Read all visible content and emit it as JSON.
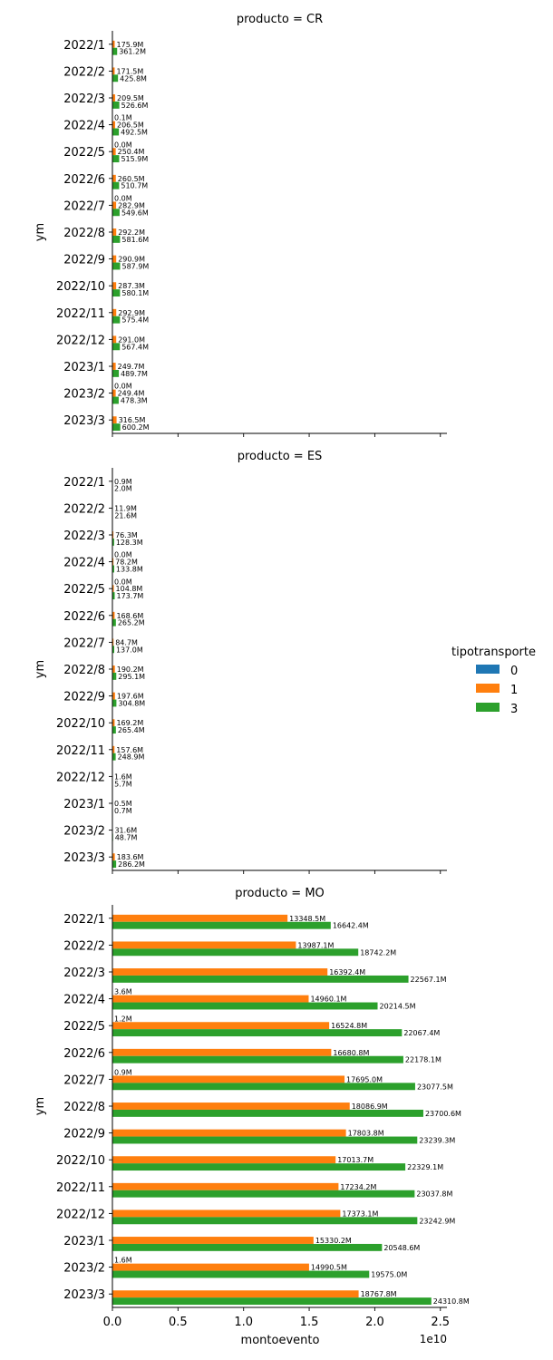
{
  "figure": {
    "x_axis_label": "montoevento",
    "y_axis_label": "ym",
    "offset_label": "1e10",
    "x_ticks": [
      "0.0",
      "0.5",
      "1.0",
      "1.5",
      "2.0",
      "2.5"
    ],
    "x_tick_values": [
      0,
      5000000000.0,
      10000000000.0,
      15000000000.0,
      20000000000.0,
      25000000000.0
    ],
    "x_max": 25500000000.0,
    "legend": {
      "title": "tipotransporte",
      "placement": "right",
      "items": [
        {
          "label": "0",
          "color": "#1f77b4"
        },
        {
          "label": "1",
          "color": "#ff7f0e"
        },
        {
          "label": "3",
          "color": "#2ca02c"
        }
      ]
    }
  },
  "chart_data": [
    {
      "type": "bar",
      "title": "producto = CR",
      "categories": [
        "2022/1",
        "2022/2",
        "2022/3",
        "2022/4",
        "2022/5",
        "2022/6",
        "2022/7",
        "2022/8",
        "2022/9",
        "2022/10",
        "2022/11",
        "2022/12",
        "2023/1",
        "2023/2",
        "2023/3"
      ],
      "series": [
        {
          "name": "0",
          "color": "#1f77b4",
          "values": [
            null,
            null,
            null,
            100000.0,
            0,
            null,
            0,
            null,
            null,
            null,
            null,
            null,
            null,
            0,
            null
          ],
          "labels": [
            null,
            null,
            null,
            "0.1M",
            "0.0M",
            null,
            "0.0M",
            null,
            null,
            null,
            null,
            null,
            null,
            "0.0M",
            null
          ]
        },
        {
          "name": "1",
          "color": "#ff7f0e",
          "values": [
            175900000.0,
            171500000.0,
            209500000.0,
            206500000.0,
            250400000.0,
            260500000.0,
            282900000.0,
            292200000.0,
            290900000.0,
            287300000.0,
            292900000.0,
            291000000.0,
            249700000.0,
            249400000.0,
            316500000.0
          ],
          "labels": [
            "175.9M",
            "171.5M",
            "209.5M",
            "206.5M",
            "250.4M",
            "260.5M",
            "282.9M",
            "292.2M",
            "290.9M",
            "287.3M",
            "292.9M",
            "291.0M",
            "249.7M",
            "249.4M",
            "316.5M"
          ]
        },
        {
          "name": "3",
          "color": "#2ca02c",
          "values": [
            361200000.0,
            425800000.0,
            526600000.0,
            492500000.0,
            515900000.0,
            510700000.0,
            549600000.0,
            581600000.0,
            587900000.0,
            580100000.0,
            575400000.0,
            567400000.0,
            489700000.0,
            478300000.0,
            600200000.0
          ],
          "labels": [
            "361.2M",
            "425.8M",
            "526.6M",
            "492.5M",
            "515.9M",
            "510.7M",
            "549.6M",
            "581.6M",
            "587.9M",
            "580.1M",
            "575.4M",
            "567.4M",
            "489.7M",
            "478.3M",
            "600.2M"
          ]
        }
      ]
    },
    {
      "type": "bar",
      "title": "producto = ES",
      "categories": [
        "2022/1",
        "2022/2",
        "2022/3",
        "2022/4",
        "2022/5",
        "2022/6",
        "2022/7",
        "2022/8",
        "2022/9",
        "2022/10",
        "2022/11",
        "2022/12",
        "2023/1",
        "2023/2",
        "2023/3"
      ],
      "series": [
        {
          "name": "0",
          "color": "#1f77b4",
          "values": [
            null,
            null,
            null,
            0,
            0,
            null,
            null,
            null,
            null,
            null,
            null,
            null,
            null,
            null,
            null
          ],
          "labels": [
            null,
            null,
            null,
            "0.0M",
            "0.0M",
            null,
            null,
            null,
            null,
            null,
            null,
            null,
            null,
            null,
            null
          ]
        },
        {
          "name": "1",
          "color": "#ff7f0e",
          "values": [
            900000.0,
            11900000.0,
            76300000.0,
            78200000.0,
            104800000.0,
            168600000.0,
            84700000.0,
            190200000.0,
            197600000.0,
            169200000.0,
            157600000.0,
            1600000.0,
            500000.0,
            31600000.0,
            183600000.0
          ],
          "labels": [
            "0.9M",
            "11.9M",
            "76.3M",
            "78.2M",
            "104.8M",
            "168.6M",
            "84.7M",
            "190.2M",
            "197.6M",
            "169.2M",
            "157.6M",
            "1.6M",
            "0.5M",
            "31.6M",
            "183.6M"
          ]
        },
        {
          "name": "3",
          "color": "#2ca02c",
          "values": [
            2000000.0,
            21600000.0,
            128300000.0,
            133800000.0,
            173700000.0,
            265200000.0,
            137000000.0,
            295100000.0,
            304800000.0,
            265400000.0,
            248900000.0,
            5700000.0,
            700000.0,
            48700000.0,
            286200000.0
          ],
          "labels": [
            "2.0M",
            "21.6M",
            "128.3M",
            "133.8M",
            "173.7M",
            "265.2M",
            "137.0M",
            "295.1M",
            "304.8M",
            "265.4M",
            "248.9M",
            "5.7M",
            "0.7M",
            "48.7M",
            "286.2M"
          ]
        }
      ]
    },
    {
      "type": "bar",
      "title": "producto = MO",
      "categories": [
        "2022/1",
        "2022/2",
        "2022/3",
        "2022/4",
        "2022/5",
        "2022/6",
        "2022/7",
        "2022/8",
        "2022/9",
        "2022/10",
        "2022/11",
        "2022/12",
        "2023/1",
        "2023/2",
        "2023/3"
      ],
      "series": [
        {
          "name": "0",
          "color": "#1f77b4",
          "values": [
            null,
            null,
            null,
            3600000.0,
            1200000.0,
            null,
            900000.0,
            null,
            null,
            null,
            null,
            null,
            null,
            1600000.0,
            null
          ],
          "labels": [
            null,
            null,
            null,
            "3.6M",
            "1.2M",
            null,
            "0.9M",
            null,
            null,
            null,
            null,
            null,
            null,
            "1.6M",
            null
          ]
        },
        {
          "name": "1",
          "color": "#ff7f0e",
          "values": [
            13348500000.0,
            13987100000.0,
            16392400000.0,
            14960100000.0,
            16524800000.0,
            16680800000.0,
            17695000000.0,
            18086900000.0,
            17803800000.0,
            17013700000.0,
            17234200000.0,
            17373100000.0,
            15330200000.0,
            14990500000.0,
            18767800000.0
          ],
          "labels": [
            "13348.5M",
            "13987.1M",
            "16392.4M",
            "14960.1M",
            "16524.8M",
            "16680.8M",
            "17695.0M",
            "18086.9M",
            "17803.8M",
            "17013.7M",
            "17234.2M",
            "17373.1M",
            "15330.2M",
            "14990.5M",
            "18767.8M"
          ]
        },
        {
          "name": "3",
          "color": "#2ca02c",
          "values": [
            16642400000.0,
            18742200000.0,
            22567100000.0,
            20214500000.0,
            22067400000.0,
            22178100000.0,
            23077500000.0,
            23700600000.0,
            23239300000.0,
            22329100000.0,
            23037800000.0,
            23242900000.0,
            20548600000.0,
            19575000000.0,
            24310800000.0
          ],
          "labels": [
            "16642.4M",
            "18742.2M",
            "22567.1M",
            "20214.5M",
            "22067.4M",
            "22178.1M",
            "23077.5M",
            "23700.6M",
            "23239.3M",
            "22329.1M",
            "23037.8M",
            "23242.9M",
            "20548.6M",
            "19575.0M",
            "24310.8M"
          ]
        }
      ]
    }
  ]
}
